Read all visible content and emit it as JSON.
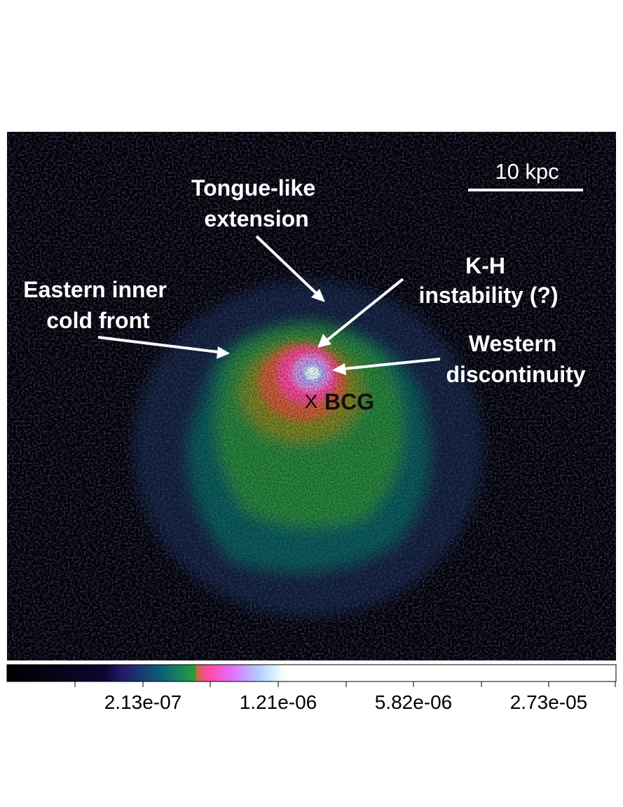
{
  "scale_bar": {
    "label": "10 kpc"
  },
  "annotations": {
    "tongue": [
      "Tongue-like",
      "extension"
    ],
    "kh": [
      "K-H",
      "instability (?)"
    ],
    "eastern": [
      "Eastern inner",
      "cold front"
    ],
    "western": [
      "Western",
      "discontinuity"
    ],
    "bcg_marker": "X",
    "bcg": "BCG"
  },
  "colorbar": {
    "tick_labels": [
      "2.13e-07",
      "1.21e-06",
      "5.82e-06",
      "2.73e-05"
    ],
    "colormap_stops": [
      "#000000",
      "#0a0830",
      "#241a6a",
      "#0f5a78",
      "#1a8a5a",
      "#2fa030",
      "#7a9a1a",
      "#c86a3a",
      "#ff4aa0",
      "#e070ff",
      "#b0c8ff",
      "#e8ffff",
      "#ffffff"
    ]
  },
  "colors": {
    "background": "#000000",
    "annotation_text": "#ffffff",
    "bcg_label": "#111111"
  }
}
